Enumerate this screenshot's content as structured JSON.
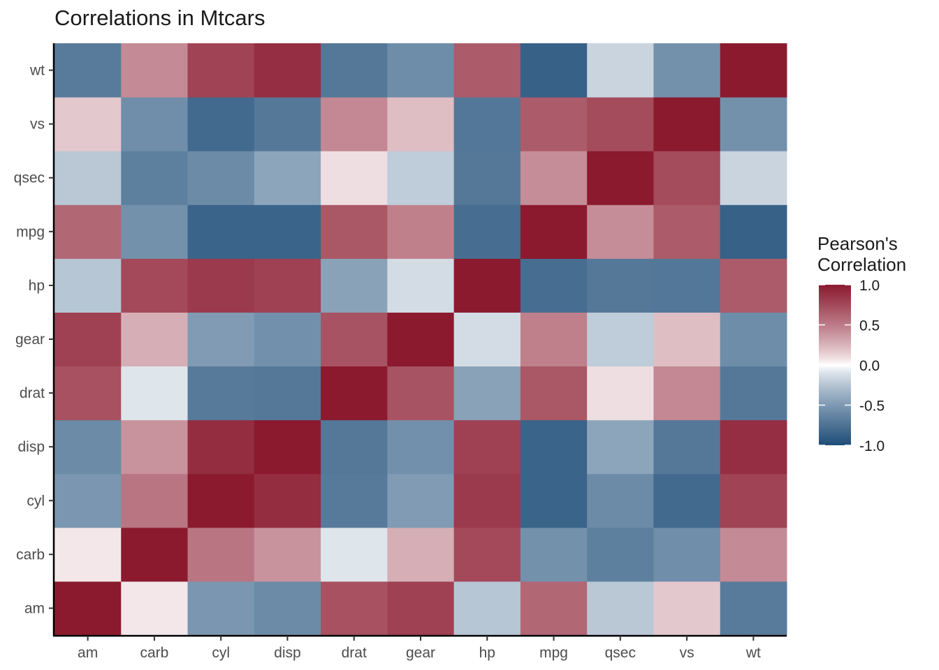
{
  "chart_data": {
    "type": "heatmap",
    "title": "Correlations in Mtcars",
    "xlabel": "",
    "ylabel": "",
    "x": [
      "am",
      "carb",
      "cyl",
      "disp",
      "drat",
      "gear",
      "hp",
      "mpg",
      "qsec",
      "vs",
      "wt"
    ],
    "y": [
      "am",
      "carb",
      "cyl",
      "disp",
      "drat",
      "gear",
      "hp",
      "mpg",
      "qsec",
      "vs",
      "wt"
    ],
    "values": [
      [
        1.0,
        0.06,
        -0.52,
        -0.59,
        0.71,
        0.79,
        -0.24,
        0.6,
        -0.23,
        0.17,
        -0.69
      ],
      [
        0.06,
        1.0,
        0.53,
        0.39,
        -0.09,
        0.27,
        0.75,
        -0.55,
        -0.66,
        -0.57,
        0.43
      ],
      [
        -0.52,
        0.53,
        1.0,
        0.9,
        -0.7,
        -0.49,
        0.83,
        -0.85,
        -0.59,
        -0.81,
        0.78
      ],
      [
        -0.59,
        0.39,
        0.9,
        1.0,
        -0.71,
        -0.56,
        0.79,
        -0.85,
        -0.43,
        -0.71,
        0.89
      ],
      [
        0.71,
        -0.09,
        -0.7,
        -0.71,
        1.0,
        0.7,
        -0.45,
        0.68,
        0.09,
        0.44,
        -0.71
      ],
      [
        0.79,
        0.27,
        -0.49,
        -0.56,
        0.7,
        1.0,
        -0.13,
        0.48,
        -0.21,
        0.21,
        -0.58
      ],
      [
        -0.24,
        0.75,
        0.83,
        0.79,
        -0.45,
        -0.13,
        1.0,
        -0.78,
        -0.71,
        -0.72,
        0.66
      ],
      [
        0.6,
        -0.55,
        -0.85,
        -0.85,
        0.68,
        0.48,
        -0.78,
        1.0,
        0.42,
        0.66,
        -0.87
      ],
      [
        -0.23,
        -0.66,
        -0.59,
        -0.43,
        0.09,
        -0.21,
        -0.71,
        0.42,
        1.0,
        0.74,
        -0.17
      ],
      [
        0.17,
        -0.57,
        -0.81,
        -0.71,
        0.44,
        0.21,
        -0.72,
        0.66,
        0.74,
        1.0,
        -0.55
      ],
      [
        -0.69,
        0.43,
        0.78,
        0.89,
        -0.71,
        -0.58,
        0.66,
        -0.87,
        -0.17,
        -0.55,
        1.0
      ]
    ],
    "zlim": [
      -1.0,
      1.0
    ],
    "colorscale": {
      "low": "#1f4e79",
      "mid": "#ffffff",
      "high": "#8b1a2f"
    },
    "legend": {
      "title_lines": [
        "Pearson's",
        "Correlation"
      ],
      "position": "right",
      "ticks": [
        1.0,
        0.5,
        0.0,
        -0.5,
        -1.0
      ],
      "tick_labels": [
        "1.0",
        "0.5",
        "0.0",
        "-0.5",
        "-1.0"
      ]
    },
    "grid": false
  }
}
